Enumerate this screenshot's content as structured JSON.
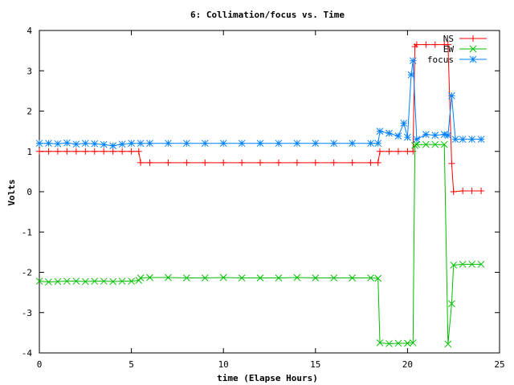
{
  "chart_data": {
    "type": "line",
    "title": "6: Collimation/focus vs. Time",
    "xlabel": "time (Elapse Hours)",
    "ylabel": "Volts",
    "xlim": [
      0,
      25
    ],
    "ylim": [
      -4,
      4
    ],
    "x_ticks": [
      0,
      5,
      10,
      15,
      20,
      25
    ],
    "y_ticks": [
      -4,
      -3,
      -2,
      -1,
      0,
      1,
      2,
      3,
      4
    ],
    "grid": false,
    "legend_position": "top-right",
    "series": [
      {
        "name": "NS",
        "color": "#ff0000",
        "marker": "plus",
        "x": [
          0.0,
          0.5,
          1.0,
          1.5,
          2.0,
          2.5,
          3.0,
          3.5,
          4.0,
          4.5,
          5.0,
          5.4,
          5.5,
          6.0,
          7.0,
          8.0,
          9.0,
          10.0,
          11.0,
          12.0,
          13.0,
          14.0,
          15.0,
          16.0,
          17.0,
          18.0,
          18.4,
          18.5,
          19.0,
          19.5,
          20.0,
          20.3,
          20.4,
          20.5,
          21.0,
          21.5,
          22.0,
          22.2,
          22.4,
          22.5,
          23.0,
          23.5,
          24.0
        ],
        "y": [
          1.0,
          1.0,
          1.0,
          1.0,
          1.0,
          1.0,
          1.0,
          1.0,
          1.0,
          1.0,
          1.0,
          1.0,
          0.72,
          0.72,
          0.72,
          0.72,
          0.72,
          0.72,
          0.72,
          0.72,
          0.72,
          0.72,
          0.72,
          0.72,
          0.72,
          0.72,
          0.72,
          1.0,
          1.0,
          1.0,
          1.0,
          1.0,
          3.6,
          3.65,
          3.65,
          3.65,
          3.65,
          3.65,
          0.7,
          0.0,
          0.02,
          0.02,
          0.02
        ]
      },
      {
        "name": "EW",
        "color": "#00c000",
        "marker": "cross",
        "x": [
          0.0,
          0.5,
          1.0,
          1.5,
          2.0,
          2.5,
          3.0,
          3.5,
          4.0,
          4.5,
          5.0,
          5.4,
          5.5,
          6.0,
          7.0,
          8.0,
          9.0,
          10.0,
          11.0,
          12.0,
          13.0,
          14.0,
          15.0,
          16.0,
          17.0,
          18.0,
          18.4,
          18.5,
          19.0,
          19.5,
          20.0,
          20.3,
          20.4,
          20.5,
          21.0,
          21.5,
          22.0,
          22.2,
          22.4,
          22.5,
          23.0,
          23.5,
          24.0
        ],
        "y": [
          -2.22,
          -2.24,
          -2.23,
          -2.22,
          -2.22,
          -2.23,
          -2.22,
          -2.22,
          -2.23,
          -2.22,
          -2.22,
          -2.2,
          -2.14,
          -2.13,
          -2.13,
          -2.14,
          -2.14,
          -2.13,
          -2.14,
          -2.14,
          -2.14,
          -2.13,
          -2.14,
          -2.14,
          -2.14,
          -2.14,
          -2.15,
          -3.75,
          -3.77,
          -3.76,
          -3.76,
          -3.75,
          1.15,
          1.17,
          1.17,
          1.17,
          1.17,
          -3.78,
          -2.78,
          -1.82,
          -1.8,
          -1.8,
          -1.8
        ]
      },
      {
        "name": "focus",
        "color": "#0080ff",
        "marker": "star",
        "x": [
          0.0,
          0.5,
          1.0,
          1.5,
          2.0,
          2.5,
          3.0,
          3.5,
          4.0,
          4.5,
          5.0,
          5.5,
          6.0,
          7.0,
          8.0,
          9.0,
          10.0,
          11.0,
          12.0,
          13.0,
          14.0,
          15.0,
          16.0,
          17.0,
          18.0,
          18.4,
          18.5,
          19.0,
          19.5,
          19.8,
          20.0,
          20.2,
          20.3,
          20.5,
          21.0,
          21.5,
          22.0,
          22.2,
          22.4,
          22.6,
          23.0,
          23.5,
          24.0
        ],
        "y": [
          1.2,
          1.2,
          1.19,
          1.21,
          1.18,
          1.2,
          1.19,
          1.17,
          1.14,
          1.18,
          1.2,
          1.2,
          1.2,
          1.2,
          1.2,
          1.2,
          1.2,
          1.2,
          1.2,
          1.2,
          1.2,
          1.2,
          1.2,
          1.2,
          1.2,
          1.2,
          1.5,
          1.45,
          1.38,
          1.7,
          1.35,
          2.9,
          3.25,
          1.3,
          1.42,
          1.4,
          1.42,
          1.4,
          2.38,
          1.3,
          1.3,
          1.3,
          1.3
        ]
      }
    ]
  }
}
